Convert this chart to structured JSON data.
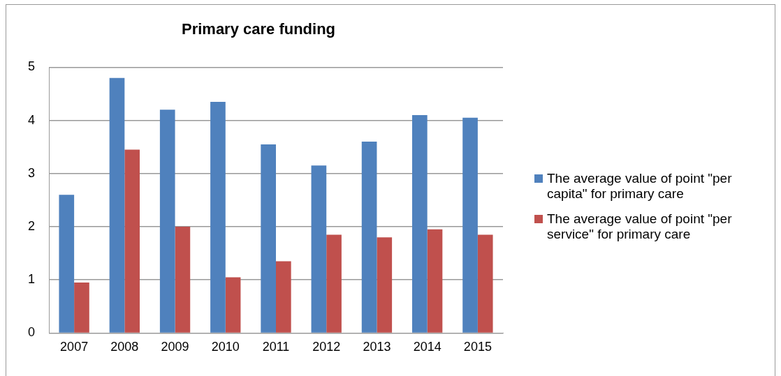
{
  "chart_data": {
    "type": "bar",
    "title": "Primary care funding",
    "categories": [
      "2007",
      "2008",
      "2009",
      "2010",
      "2011",
      "2012",
      "2013",
      "2014",
      "2015"
    ],
    "series": [
      {
        "name": "The average value of point \"per capita\" for primary care",
        "color": "#4f81bd",
        "values": [
          2.6,
          4.8,
          4.2,
          4.35,
          3.55,
          3.15,
          3.6,
          4.1,
          4.05
        ]
      },
      {
        "name": "The average value of point \"per service\" for primary care",
        "color": "#c0504d",
        "values": [
          0.95,
          3.45,
          2.0,
          1.05,
          1.35,
          1.85,
          1.8,
          1.95,
          1.85
        ]
      }
    ],
    "ylim": [
      0,
      5
    ],
    "yticks": [
      0,
      1,
      2,
      3,
      4,
      5
    ],
    "grid": "y",
    "legend": "right"
  }
}
